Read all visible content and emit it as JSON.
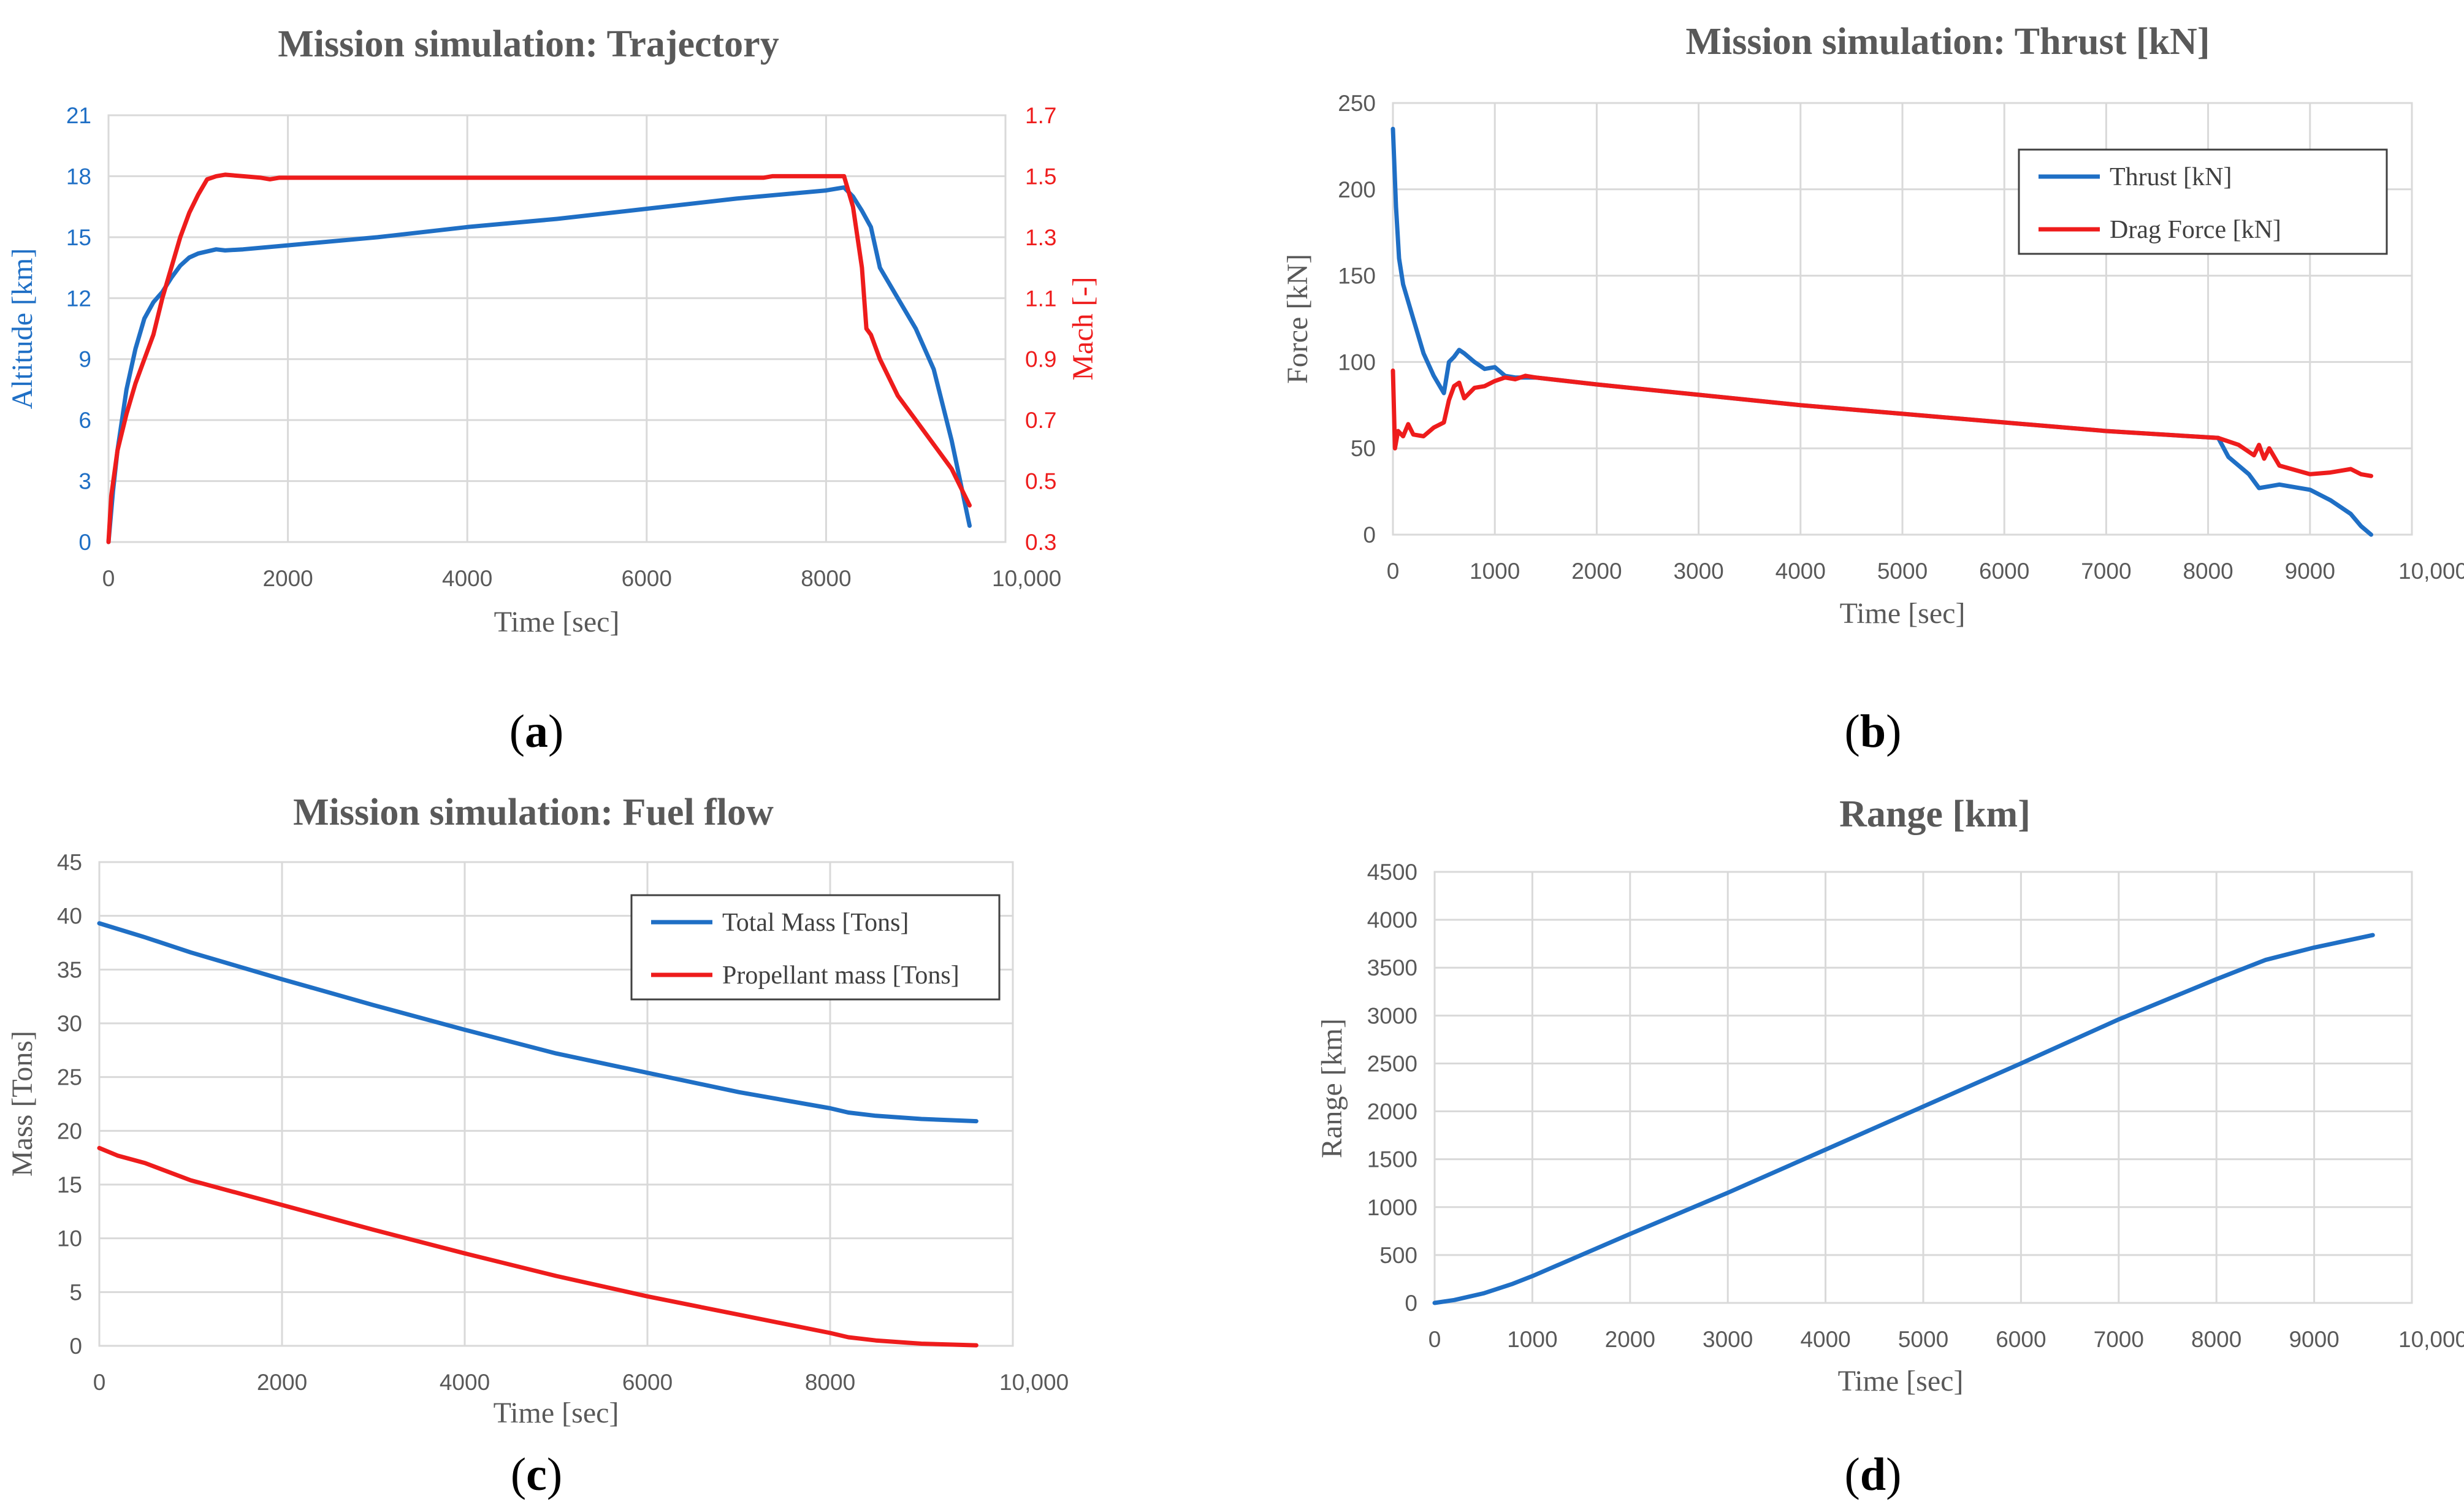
{
  "chart_data": [
    {
      "id": "a",
      "type": "line",
      "title": "Mission simulation: Trajectory",
      "caption": "a",
      "xlabel": "Time [sec]",
      "ylabel": "Altitude [km]",
      "y2label": "Mach [-]",
      "xlim": [
        0,
        10000
      ],
      "ylim": [
        0,
        21
      ],
      "y2lim": [
        0.3,
        1.7
      ],
      "xticks": [
        "0",
        "2000",
        "4000",
        "6000",
        "8000",
        "10,000"
      ],
      "yticks": [
        "0",
        "3",
        "6",
        "9",
        "12",
        "15",
        "18",
        "21"
      ],
      "y2ticks": [
        "0.3",
        "0.5",
        "0.7",
        "0.9",
        "1.1",
        "1.3",
        "1.5",
        "1.7"
      ],
      "grid": true,
      "series": [
        {
          "name": "Altitude",
          "color": "#1f6fc5",
          "axis": "left",
          "points": [
            [
              0,
              0
            ],
            [
              50,
              2.5
            ],
            [
              100,
              4.5
            ],
            [
              200,
              7.5
            ],
            [
              300,
              9.5
            ],
            [
              400,
              11
            ],
            [
              500,
              11.8
            ],
            [
              600,
              12.3
            ],
            [
              700,
              13
            ],
            [
              800,
              13.6
            ],
            [
              900,
              14
            ],
            [
              1000,
              14.2
            ],
            [
              1100,
              14.3
            ],
            [
              1200,
              14.4
            ],
            [
              1300,
              14.35
            ],
            [
              1500,
              14.4
            ],
            [
              2000,
              14.6
            ],
            [
              3000,
              15
            ],
            [
              4000,
              15.5
            ],
            [
              5000,
              15.9
            ],
            [
              6000,
              16.4
            ],
            [
              7000,
              16.9
            ],
            [
              8000,
              17.3
            ],
            [
              8200,
              17.45
            ],
            [
              8300,
              17
            ],
            [
              8400,
              16.3
            ],
            [
              8500,
              15.5
            ],
            [
              8600,
              13.5
            ],
            [
              8800,
              12
            ],
            [
              9000,
              10.5
            ],
            [
              9200,
              8.5
            ],
            [
              9400,
              5
            ],
            [
              9600,
              0.8
            ]
          ]
        },
        {
          "name": "Mach",
          "color": "#ee1c1c",
          "axis": "right",
          "points": [
            [
              0,
              0.3
            ],
            [
              30,
              0.45
            ],
            [
              100,
              0.6
            ],
            [
              200,
              0.72
            ],
            [
              300,
              0.82
            ],
            [
              400,
              0.9
            ],
            [
              500,
              0.98
            ],
            [
              600,
              1.1
            ],
            [
              700,
              1.2
            ],
            [
              800,
              1.3
            ],
            [
              900,
              1.38
            ],
            [
              1000,
              1.44
            ],
            [
              1100,
              1.49
            ],
            [
              1200,
              1.5
            ],
            [
              1300,
              1.505
            ],
            [
              1500,
              1.5
            ],
            [
              1700,
              1.495
            ],
            [
              1800,
              1.49
            ],
            [
              1900,
              1.495
            ],
            [
              2000,
              1.495
            ],
            [
              4000,
              1.495
            ],
            [
              6000,
              1.495
            ],
            [
              7300,
              1.495
            ],
            [
              7400,
              1.5
            ],
            [
              8200,
              1.5
            ],
            [
              8300,
              1.4
            ],
            [
              8400,
              1.2
            ],
            [
              8450,
              1.0
            ],
            [
              8500,
              0.98
            ],
            [
              8600,
              0.9
            ],
            [
              8800,
              0.78
            ],
            [
              9000,
              0.7
            ],
            [
              9200,
              0.62
            ],
            [
              9400,
              0.54
            ],
            [
              9600,
              0.42
            ]
          ]
        }
      ]
    },
    {
      "id": "b",
      "type": "line",
      "title": "Mission simulation: Thrust [kN]",
      "caption": "b",
      "xlabel": "Time [sec]",
      "ylabel": "Force [kN]",
      "xlim": [
        0,
        10000
      ],
      "ylim": [
        0,
        250
      ],
      "xticks": [
        "0",
        "1000",
        "2000",
        "3000",
        "4000",
        "5000",
        "6000",
        "7000",
        "8000",
        "9000",
        "10,000"
      ],
      "yticks": [
        "0",
        "50",
        "100",
        "150",
        "200",
        "250"
      ],
      "grid": true,
      "legend": "top-right",
      "series": [
        {
          "name": "Thrust [kN]",
          "color": "#1f6fc5",
          "points": [
            [
              0,
              235
            ],
            [
              30,
              190
            ],
            [
              60,
              160
            ],
            [
              100,
              145
            ],
            [
              200,
              125
            ],
            [
              300,
              105
            ],
            [
              400,
              92
            ],
            [
              500,
              82
            ],
            [
              550,
              100
            ],
            [
              600,
              103
            ],
            [
              650,
              107
            ],
            [
              700,
              105
            ],
            [
              800,
              100
            ],
            [
              900,
              96
            ],
            [
              1000,
              97
            ],
            [
              1100,
              92
            ],
            [
              1200,
              91
            ],
            [
              1400,
              91
            ],
            [
              2000,
              87
            ],
            [
              3000,
              81
            ],
            [
              4000,
              75
            ],
            [
              5000,
              70
            ],
            [
              6000,
              65
            ],
            [
              7000,
              60
            ],
            [
              8100,
              56
            ],
            [
              8200,
              45
            ],
            [
              8400,
              35
            ],
            [
              8500,
              27
            ],
            [
              8600,
              28
            ],
            [
              8700,
              29
            ],
            [
              8800,
              28
            ],
            [
              9000,
              26
            ],
            [
              9200,
              20
            ],
            [
              9400,
              12
            ],
            [
              9500,
              5
            ],
            [
              9600,
              0
            ]
          ]
        },
        {
          "name": "Drag Force [kN]",
          "color": "#ee1c1c",
          "points": [
            [
              0,
              95
            ],
            [
              20,
              50
            ],
            [
              50,
              60
            ],
            [
              100,
              57
            ],
            [
              150,
              64
            ],
            [
              200,
              58
            ],
            [
              300,
              57
            ],
            [
              400,
              62
            ],
            [
              500,
              65
            ],
            [
              550,
              78
            ],
            [
              600,
              86
            ],
            [
              650,
              88
            ],
            [
              700,
              79
            ],
            [
              800,
              85
            ],
            [
              900,
              86
            ],
            [
              1000,
              89
            ],
            [
              1100,
              91
            ],
            [
              1200,
              90
            ],
            [
              1300,
              92
            ],
            [
              1400,
              91
            ],
            [
              2000,
              87
            ],
            [
              3000,
              81
            ],
            [
              4000,
              75
            ],
            [
              5000,
              70
            ],
            [
              6000,
              65
            ],
            [
              7000,
              60
            ],
            [
              8100,
              56
            ],
            [
              8300,
              52
            ],
            [
              8450,
              46
            ],
            [
              8500,
              52
            ],
            [
              8550,
              44
            ],
            [
              8600,
              50
            ],
            [
              8700,
              40
            ],
            [
              9000,
              35
            ],
            [
              9200,
              36
            ],
            [
              9300,
              37
            ],
            [
              9400,
              38
            ],
            [
              9500,
              35
            ],
            [
              9600,
              34
            ]
          ]
        }
      ]
    },
    {
      "id": "c",
      "type": "line",
      "title": "Mission simulation: Fuel flow",
      "caption": "c",
      "xlabel": "Time [sec]",
      "ylabel": "Mass [Tons]",
      "xlim": [
        0,
        10000
      ],
      "ylim": [
        0,
        45
      ],
      "xticks": [
        "0",
        "2000",
        "4000",
        "6000",
        "8000",
        "10,000"
      ],
      "yticks": [
        "0",
        "5",
        "10",
        "15",
        "20",
        "25",
        "30",
        "35",
        "40",
        "45"
      ],
      "grid": true,
      "legend": "top-right",
      "series": [
        {
          "name": "Total Mass [Tons]",
          "color": "#1f6fc5",
          "points": [
            [
              0,
              39.3
            ],
            [
              500,
              38
            ],
            [
              1000,
              36.6
            ],
            [
              2000,
              34.1
            ],
            [
              3000,
              31.7
            ],
            [
              4000,
              29.4
            ],
            [
              5000,
              27.2
            ],
            [
              6000,
              25.4
            ],
            [
              7000,
              23.6
            ],
            [
              8000,
              22.1
            ],
            [
              8200,
              21.7
            ],
            [
              8500,
              21.4
            ],
            [
              9000,
              21.1
            ],
            [
              9600,
              20.9
            ]
          ]
        },
        {
          "name": "Propellant mass [Tons]",
          "color": "#ee1c1c",
          "points": [
            [
              0,
              18.4
            ],
            [
              200,
              17.7
            ],
            [
              500,
              17
            ],
            [
              1000,
              15.4
            ],
            [
              2000,
              13.1
            ],
            [
              3000,
              10.8
            ],
            [
              4000,
              8.6
            ],
            [
              5000,
              6.5
            ],
            [
              6000,
              4.6
            ],
            [
              7000,
              2.9
            ],
            [
              8000,
              1.2
            ],
            [
              8200,
              0.8
            ],
            [
              8500,
              0.5
            ],
            [
              9000,
              0.2
            ],
            [
              9600,
              0.05
            ]
          ]
        }
      ]
    },
    {
      "id": "d",
      "type": "line",
      "title": "Range [km]",
      "caption": "d",
      "xlabel": "Time [sec]",
      "ylabel": "Range [km]",
      "xlim": [
        0,
        10000
      ],
      "ylim": [
        0,
        4500
      ],
      "xticks": [
        "0",
        "1000",
        "2000",
        "3000",
        "4000",
        "5000",
        "6000",
        "7000",
        "8000",
        "9000",
        "10,000"
      ],
      "yticks": [
        "0",
        "500",
        "1000",
        "1500",
        "2000",
        "2500",
        "3000",
        "3500",
        "4000",
        "4500"
      ],
      "grid": true,
      "series": [
        {
          "name": "Range",
          "color": "#1f6fc5",
          "points": [
            [
              0,
              0
            ],
            [
              200,
              30
            ],
            [
              500,
              100
            ],
            [
              800,
              200
            ],
            [
              1000,
              280
            ],
            [
              2000,
              720
            ],
            [
              3000,
              1150
            ],
            [
              4000,
              1600
            ],
            [
              5000,
              2050
            ],
            [
              6000,
              2500
            ],
            [
              7000,
              2960
            ],
            [
              8000,
              3380
            ],
            [
              8500,
              3580
            ],
            [
              9000,
              3710
            ],
            [
              9600,
              3840
            ]
          ]
        }
      ]
    }
  ]
}
